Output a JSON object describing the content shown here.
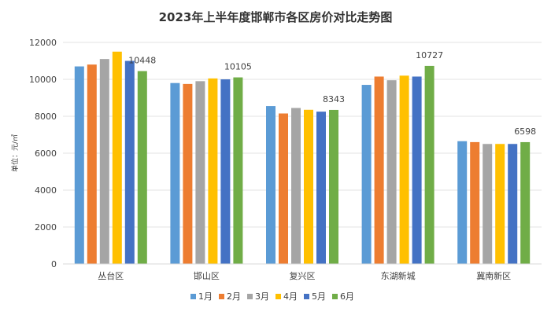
{
  "chart_data": {
    "type": "bar",
    "title": "2023年上半年度邯郸市各区房价对比走势图",
    "xlabel": "",
    "ylabel": "单位：元/㎡",
    "ylim": [
      0,
      12000
    ],
    "yticks": [
      0,
      2000,
      4000,
      6000,
      8000,
      10000,
      12000
    ],
    "categories": [
      "丛台区",
      "邯山区",
      "复兴区",
      "东湖新城",
      "冀南新区"
    ],
    "series": [
      {
        "name": "1月",
        "color": "#5B9BD5",
        "values": [
          10700,
          9800,
          8550,
          9700,
          6650
        ]
      },
      {
        "name": "2月",
        "color": "#ED7D31",
        "values": [
          10800,
          9750,
          8150,
          10150,
          6600
        ]
      },
      {
        "name": "3月",
        "color": "#A5A5A5",
        "values": [
          11100,
          9900,
          8450,
          9950,
          6500
        ]
      },
      {
        "name": "4月",
        "color": "#FFC000",
        "values": [
          11500,
          10050,
          8350,
          10200,
          6500
        ]
      },
      {
        "name": "5月",
        "color": "#4472C4",
        "values": [
          11000,
          10000,
          8250,
          10150,
          6500
        ]
      },
      {
        "name": "6月",
        "color": "#70AD47",
        "values": [
          10448,
          10105,
          8343,
          10727,
          6598
        ]
      }
    ],
    "data_labels": {
      "series": "6月",
      "values": [
        "10448",
        "10105",
        "8343",
        "10727",
        "6598"
      ]
    },
    "grid": true,
    "legend_position": "bottom"
  }
}
